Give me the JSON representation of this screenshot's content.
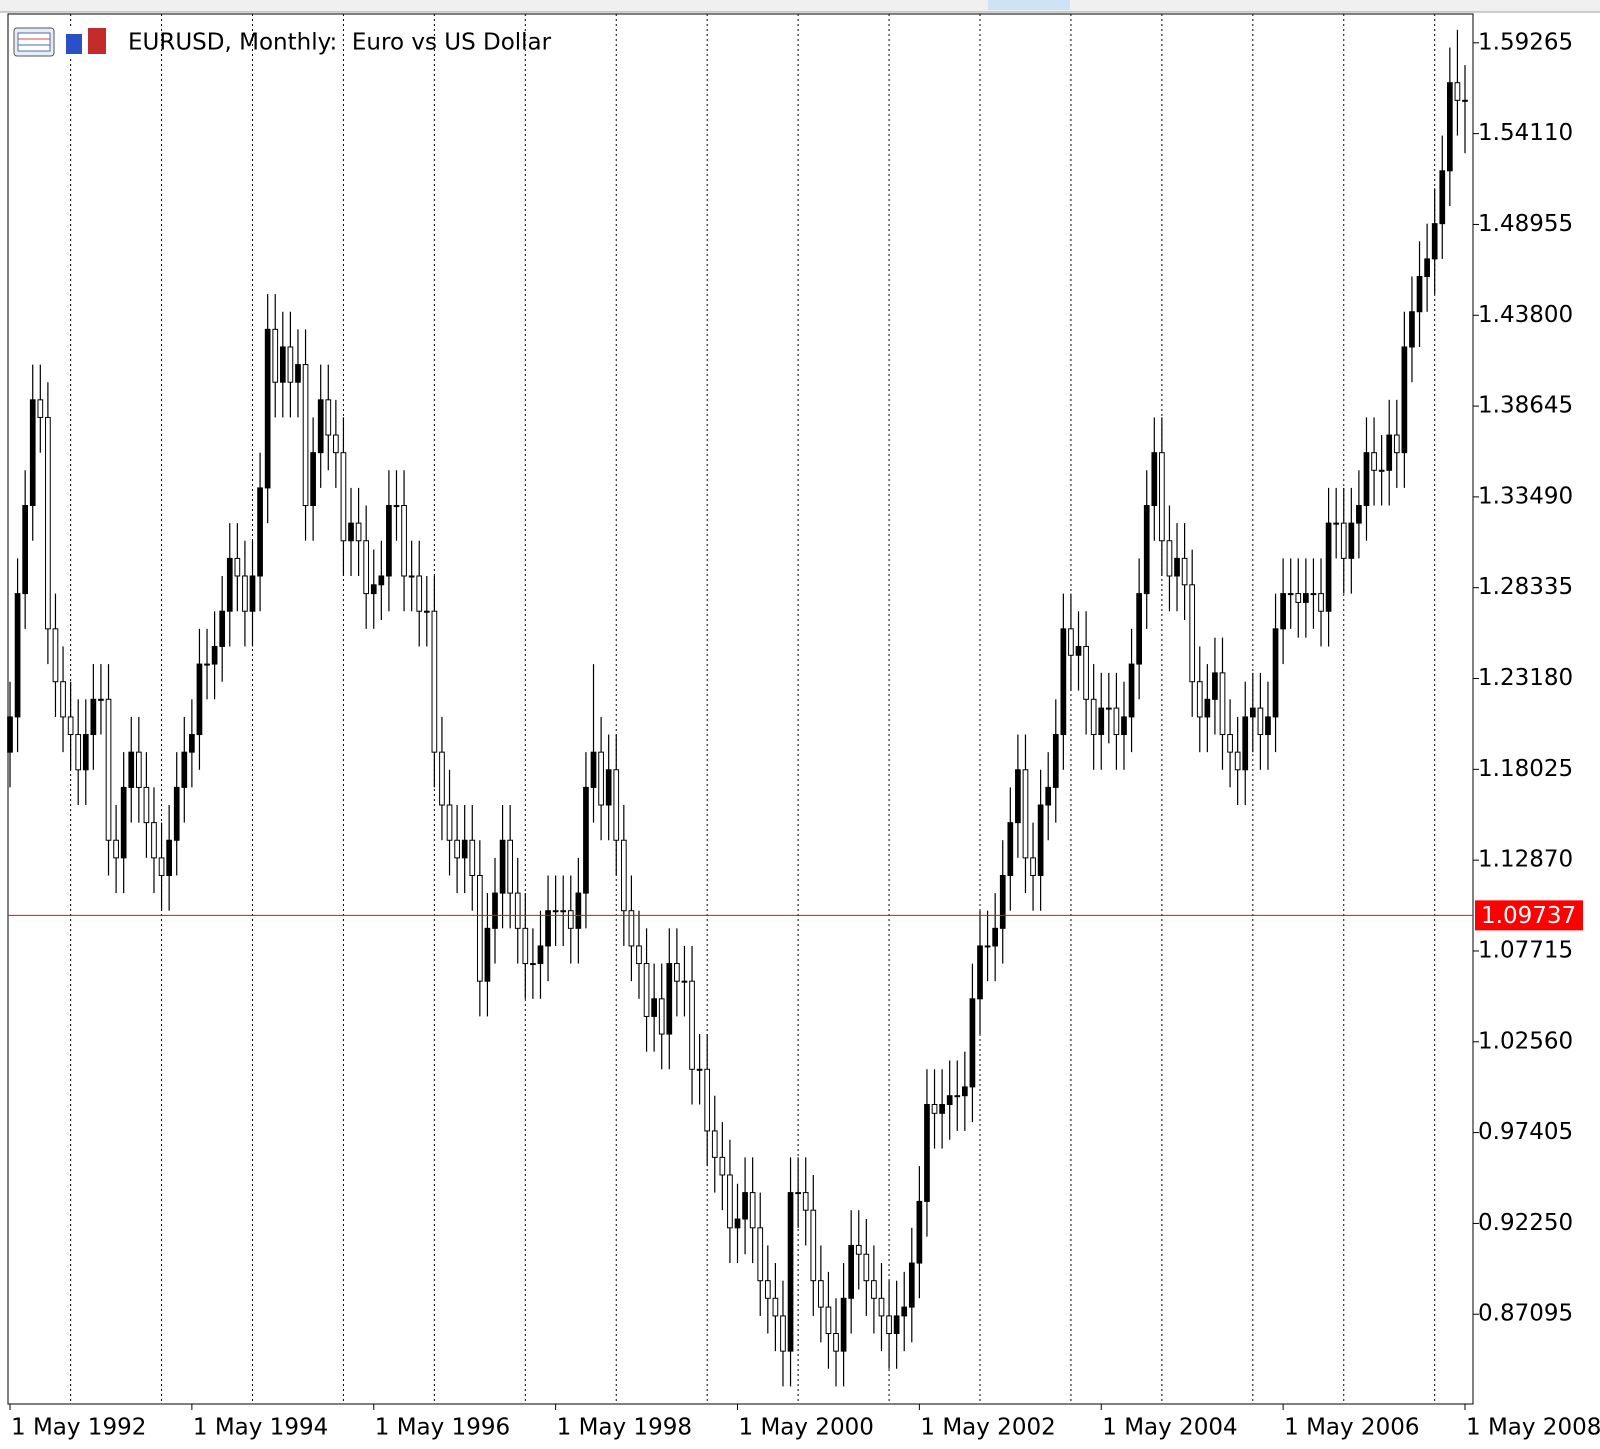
{
  "chart_data": {
    "type": "candlestick",
    "title": "EURUSD, Monthly:  Euro vs US Dollar",
    "categories": [
      "1 May 1992",
      null,
      null,
      null,
      null,
      null,
      null,
      null,
      null,
      null,
      null,
      null,
      null,
      null,
      null,
      null,
      null,
      null,
      null,
      null,
      null,
      null,
      null,
      null,
      "1 May 1994",
      null,
      null,
      null,
      null,
      null,
      null,
      null,
      null,
      null,
      null,
      null,
      null,
      null,
      null,
      null,
      null,
      null,
      null,
      null,
      null,
      null,
      null,
      null,
      "1 May 1996",
      null,
      null,
      null,
      null,
      null,
      null,
      null,
      null,
      null,
      null,
      null,
      null,
      null,
      null,
      null,
      null,
      null,
      null,
      null,
      null,
      null,
      null,
      null,
      "1 May 1998",
      null,
      null,
      null,
      null,
      null,
      null,
      null,
      null,
      null,
      null,
      null,
      null,
      null,
      null,
      null,
      null,
      null,
      null,
      null,
      null,
      null,
      null,
      null,
      "1 May 2000",
      null,
      null,
      null,
      null,
      null,
      null,
      null,
      null,
      null,
      null,
      null,
      null,
      null,
      null,
      null,
      null,
      null,
      null,
      null,
      null,
      null,
      null,
      null,
      "1 May 2002",
      null,
      null,
      null,
      null,
      null,
      null,
      null,
      null,
      null,
      null,
      null,
      null,
      null,
      null,
      null,
      null,
      null,
      null,
      null,
      null,
      null,
      null,
      null,
      "1 May 2004",
      null,
      null,
      null,
      null,
      null,
      null,
      null,
      null,
      null,
      null,
      null,
      null,
      null,
      null,
      null,
      null,
      null,
      null,
      null,
      null,
      null,
      null,
      null,
      "1 May 2006",
      null,
      null,
      null,
      null,
      null,
      null,
      null,
      null,
      null,
      null,
      null,
      null,
      null,
      null,
      null,
      null,
      null,
      null,
      null,
      null,
      null,
      null,
      null,
      "1 May 2008"
    ],
    "open": [
      1.19,
      1.21,
      1.28,
      1.33,
      1.39,
      1.38,
      1.26,
      1.23,
      1.21,
      1.2,
      1.18,
      1.2,
      1.22,
      1.22,
      1.14,
      1.13,
      1.17,
      1.19,
      1.17,
      1.15,
      1.13,
      1.12,
      1.14,
      1.17,
      1.19,
      1.2,
      1.24,
      1.24,
      1.25,
      1.27,
      1.3,
      1.29,
      1.27,
      1.29,
      1.34,
      1.43,
      1.4,
      1.42,
      1.4,
      1.41,
      1.33,
      1.36,
      1.39,
      1.37,
      1.36,
      1.31,
      1.32,
      1.31,
      1.28,
      1.285,
      1.29,
      1.33,
      1.33,
      1.29,
      1.29,
      1.27,
      1.27,
      1.19,
      1.16,
      1.14,
      1.13,
      1.14,
      1.12,
      1.06,
      1.09,
      1.11,
      1.14,
      1.11,
      1.09,
      1.07,
      1.07,
      1.08,
      1.1,
      1.1,
      1.1,
      1.09,
      1.11,
      1.17,
      1.19,
      1.16,
      1.18,
      1.14,
      1.1,
      1.08,
      1.07,
      1.04,
      1.05,
      1.03,
      1.07,
      1.06,
      1.06,
      1.01,
      1.01,
      0.975,
      0.96,
      0.95,
      0.92,
      0.925,
      0.94,
      0.92,
      0.89,
      0.88,
      0.87,
      0.85,
      0.94,
      0.94,
      0.93,
      0.89,
      0.875,
      0.86,
      0.85,
      0.88,
      0.91,
      0.905,
      0.89,
      0.88,
      0.87,
      0.86,
      0.87,
      0.875,
      0.9,
      0.935,
      0.99,
      0.985,
      0.99,
      0.995,
      0.995,
      1.0,
      1.05,
      1.08,
      1.08,
      1.09,
      1.12,
      1.15,
      1.18,
      1.13,
      1.12,
      1.16,
      1.17,
      1.2,
      1.26,
      1.245,
      1.25,
      1.22,
      1.2,
      1.215,
      1.215,
      1.2,
      1.21,
      1.24,
      1.28,
      1.33,
      1.36,
      1.31,
      1.29,
      1.3,
      1.285,
      1.23,
      1.21,
      1.22,
      1.235,
      1.2,
      1.19,
      1.18,
      1.21,
      1.215,
      1.2,
      1.21,
      1.26,
      1.28,
      1.28,
      1.275,
      1.28,
      1.28,
      1.27,
      1.32,
      1.32,
      1.3,
      1.32,
      1.33,
      1.36,
      1.35,
      1.35,
      1.37,
      1.36,
      1.42,
      1.44,
      1.46,
      1.47,
      1.49,
      1.52,
      1.57,
      1.56
    ],
    "high": [
      1.23,
      1.3,
      1.35,
      1.41,
      1.41,
      1.4,
      1.28,
      1.25,
      1.23,
      1.22,
      1.22,
      1.24,
      1.24,
      1.24,
      1.16,
      1.19,
      1.21,
      1.21,
      1.19,
      1.17,
      1.15,
      1.16,
      1.19,
      1.21,
      1.22,
      1.26,
      1.26,
      1.27,
      1.29,
      1.32,
      1.32,
      1.31,
      1.31,
      1.36,
      1.45,
      1.45,
      1.44,
      1.44,
      1.43,
      1.43,
      1.38,
      1.41,
      1.41,
      1.39,
      1.38,
      1.34,
      1.34,
      1.33,
      1.305,
      1.31,
      1.35,
      1.35,
      1.35,
      1.31,
      1.31,
      1.29,
      1.29,
      1.21,
      1.18,
      1.16,
      1.16,
      1.16,
      1.14,
      1.11,
      1.13,
      1.16,
      1.16,
      1.13,
      1.11,
      1.09,
      1.1,
      1.12,
      1.12,
      1.12,
      1.12,
      1.13,
      1.19,
      1.24,
      1.21,
      1.2,
      1.2,
      1.16,
      1.12,
      1.1,
      1.09,
      1.07,
      1.07,
      1.09,
      1.09,
      1.08,
      1.08,
      1.03,
      1.03,
      0.995,
      0.98,
      0.97,
      0.945,
      0.96,
      0.96,
      0.94,
      0.91,
      0.9,
      0.89,
      0.96,
      0.96,
      0.96,
      0.95,
      0.91,
      0.895,
      0.88,
      0.9,
      0.93,
      0.93,
      0.925,
      0.91,
      0.9,
      0.89,
      0.89,
      0.895,
      0.92,
      0.955,
      1.01,
      1.01,
      1.01,
      1.015,
      1.015,
      1.02,
      1.07,
      1.1,
      1.1,
      1.11,
      1.14,
      1.17,
      1.2,
      1.2,
      1.15,
      1.18,
      1.19,
      1.22,
      1.28,
      1.28,
      1.27,
      1.27,
      1.24,
      1.235,
      1.235,
      1.235,
      1.23,
      1.26,
      1.3,
      1.35,
      1.38,
      1.38,
      1.33,
      1.32,
      1.32,
      1.305,
      1.25,
      1.24,
      1.255,
      1.255,
      1.22,
      1.21,
      1.23,
      1.235,
      1.235,
      1.23,
      1.28,
      1.3,
      1.3,
      1.3,
      1.3,
      1.3,
      1.3,
      1.34,
      1.34,
      1.34,
      1.34,
      1.35,
      1.38,
      1.38,
      1.37,
      1.39,
      1.39,
      1.44,
      1.46,
      1.48,
      1.49,
      1.51,
      1.54,
      1.59,
      1.6,
      1.58
    ],
    "low": [
      1.17,
      1.19,
      1.26,
      1.31,
      1.36,
      1.24,
      1.21,
      1.19,
      1.18,
      1.16,
      1.16,
      1.18,
      1.2,
      1.12,
      1.11,
      1.11,
      1.15,
      1.15,
      1.13,
      1.11,
      1.1,
      1.1,
      1.12,
      1.15,
      1.17,
      1.18,
      1.22,
      1.22,
      1.23,
      1.25,
      1.27,
      1.25,
      1.25,
      1.27,
      1.32,
      1.38,
      1.38,
      1.38,
      1.38,
      1.31,
      1.31,
      1.34,
      1.35,
      1.34,
      1.29,
      1.29,
      1.29,
      1.26,
      1.26,
      1.265,
      1.27,
      1.31,
      1.27,
      1.27,
      1.25,
      1.25,
      1.17,
      1.14,
      1.12,
      1.11,
      1.11,
      1.1,
      1.04,
      1.04,
      1.07,
      1.09,
      1.09,
      1.07,
      1.05,
      1.05,
      1.05,
      1.06,
      1.08,
      1.08,
      1.07,
      1.07,
      1.09,
      1.15,
      1.14,
      1.14,
      1.12,
      1.08,
      1.06,
      1.05,
      1.02,
      1.02,
      1.01,
      1.01,
      1.04,
      1.04,
      0.99,
      0.99,
      0.955,
      0.94,
      0.93,
      0.9,
      0.9,
      0.905,
      0.9,
      0.87,
      0.86,
      0.85,
      0.83,
      0.83,
      0.92,
      0.91,
      0.87,
      0.855,
      0.84,
      0.83,
      0.83,
      0.86,
      0.885,
      0.87,
      0.86,
      0.85,
      0.84,
      0.84,
      0.85,
      0.855,
      0.88,
      0.915,
      0.965,
      0.965,
      0.97,
      0.975,
      0.975,
      0.98,
      1.03,
      1.06,
      1.06,
      1.07,
      1.1,
      1.13,
      1.11,
      1.1,
      1.1,
      1.14,
      1.15,
      1.18,
      1.225,
      1.225,
      1.2,
      1.18,
      1.18,
      1.195,
      1.18,
      1.18,
      1.19,
      1.22,
      1.26,
      1.31,
      1.29,
      1.27,
      1.27,
      1.265,
      1.21,
      1.19,
      1.19,
      1.2,
      1.18,
      1.17,
      1.16,
      1.16,
      1.19,
      1.18,
      1.18,
      1.19,
      1.24,
      1.26,
      1.255,
      1.255,
      1.26,
      1.25,
      1.25,
      1.3,
      1.28,
      1.28,
      1.3,
      1.31,
      1.33,
      1.33,
      1.33,
      1.34,
      1.34,
      1.4,
      1.42,
      1.44,
      1.45,
      1.47,
      1.5,
      1.54,
      1.53
    ],
    "close": [
      1.21,
      1.28,
      1.33,
      1.39,
      1.38,
      1.26,
      1.23,
      1.21,
      1.2,
      1.18,
      1.2,
      1.22,
      1.22,
      1.14,
      1.13,
      1.17,
      1.19,
      1.17,
      1.15,
      1.13,
      1.12,
      1.14,
      1.17,
      1.19,
      1.2,
      1.24,
      1.24,
      1.25,
      1.27,
      1.3,
      1.29,
      1.27,
      1.29,
      1.34,
      1.43,
      1.4,
      1.42,
      1.4,
      1.41,
      1.33,
      1.36,
      1.39,
      1.37,
      1.36,
      1.31,
      1.32,
      1.31,
      1.28,
      1.285,
      1.29,
      1.33,
      1.33,
      1.29,
      1.29,
      1.27,
      1.27,
      1.19,
      1.16,
      1.14,
      1.13,
      1.14,
      1.12,
      1.06,
      1.09,
      1.11,
      1.14,
      1.11,
      1.09,
      1.07,
      1.07,
      1.08,
      1.1,
      1.1,
      1.1,
      1.09,
      1.11,
      1.17,
      1.19,
      1.16,
      1.18,
      1.14,
      1.1,
      1.08,
      1.07,
      1.04,
      1.05,
      1.03,
      1.07,
      1.06,
      1.06,
      1.01,
      1.01,
      0.975,
      0.96,
      0.95,
      0.92,
      0.925,
      0.94,
      0.92,
      0.89,
      0.88,
      0.87,
      0.85,
      0.94,
      0.94,
      0.93,
      0.89,
      0.875,
      0.86,
      0.85,
      0.88,
      0.91,
      0.905,
      0.89,
      0.88,
      0.87,
      0.86,
      0.87,
      0.875,
      0.9,
      0.935,
      0.99,
      0.985,
      0.99,
      0.995,
      0.995,
      1.0,
      1.05,
      1.08,
      1.08,
      1.09,
      1.12,
      1.15,
      1.18,
      1.13,
      1.12,
      1.16,
      1.17,
      1.2,
      1.26,
      1.245,
      1.25,
      1.22,
      1.2,
      1.215,
      1.215,
      1.2,
      1.21,
      1.24,
      1.28,
      1.33,
      1.36,
      1.31,
      1.29,
      1.3,
      1.285,
      1.23,
      1.21,
      1.22,
      1.235,
      1.2,
      1.19,
      1.18,
      1.21,
      1.215,
      1.2,
      1.21,
      1.26,
      1.28,
      1.28,
      1.275,
      1.28,
      1.28,
      1.27,
      1.32,
      1.32,
      1.3,
      1.32,
      1.33,
      1.36,
      1.35,
      1.35,
      1.37,
      1.36,
      1.42,
      1.44,
      1.46,
      1.47,
      1.49,
      1.52,
      1.57,
      1.56,
      1.56
    ],
    "bull_color": "#000000",
    "bear_color": "#ffffff",
    "current_price": 1.09737,
    "current_price_color": "#ff0000",
    "ylim": [
      0.82,
      1.609
    ],
    "yticks": [
      1.59265,
      {
        "value": 1.5411,
        "label": "1.54110"
      },
      1.48955,
      {
        "value": 1.438,
        "label": "1.43800"
      },
      1.38645,
      {
        "value": 1.3349,
        "label": "1.33490"
      },
      1.28335,
      {
        "value": 1.2318,
        "label": "1.23180"
      },
      1.18025,
      {
        "value": 1.1287,
        "label": "1.12870"
      },
      1.07715,
      {
        "value": 1.0256,
        "label": "1.02560"
      },
      0.97405,
      {
        "value": 0.9225,
        "label": "0.92250"
      },
      0.87095
    ]
  }
}
